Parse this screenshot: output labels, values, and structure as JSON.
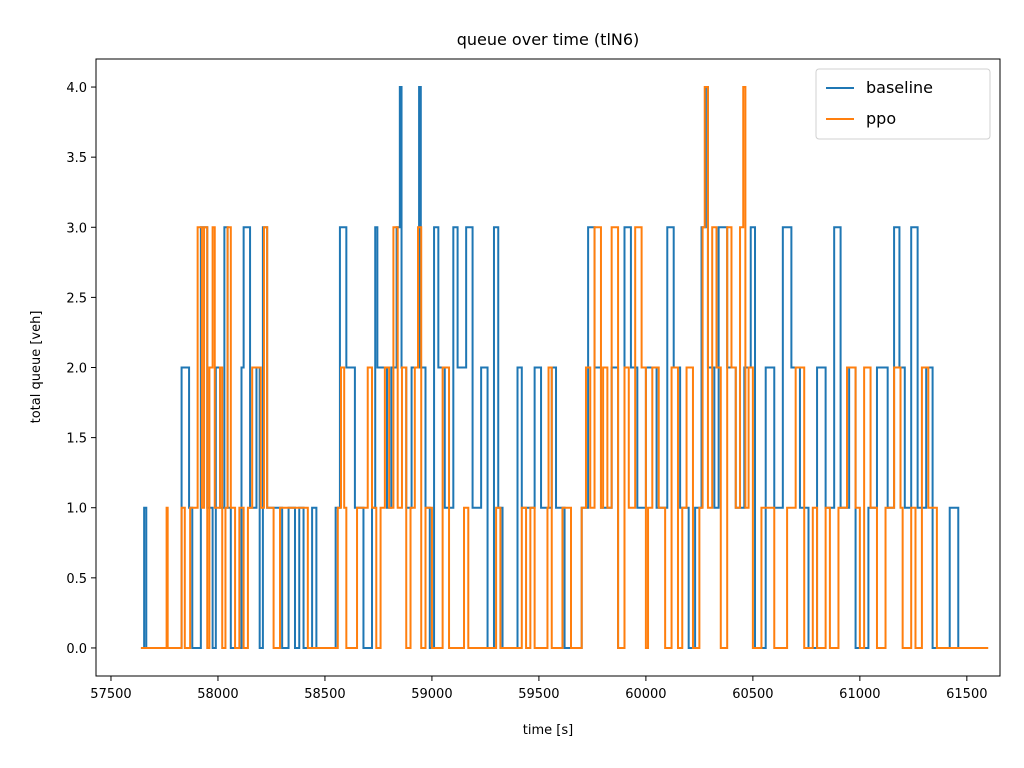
{
  "chart_data": {
    "type": "line",
    "drawstyle": "steps-post",
    "title": "queue over time (tlN6)",
    "xlabel": "time [s]",
    "ylabel": "total queue [veh]",
    "xlim": [
      57430,
      61655
    ],
    "ylim": [
      -0.2,
      4.2
    ],
    "xticks": [
      57500,
      58000,
      58500,
      59000,
      59500,
      60000,
      60500,
      61000,
      61500
    ],
    "yticks": [
      {
        "value": 0,
        "label": "0.0"
      },
      {
        "value": 0.5,
        "label": "0.5"
      },
      {
        "value": 1,
        "label": "1.0"
      },
      {
        "value": 1.5,
        "label": "1.5"
      },
      {
        "value": 2,
        "label": "2.0"
      },
      {
        "value": 2.5,
        "label": "2.5"
      },
      {
        "value": 3,
        "label": "3.0"
      },
      {
        "value": 3.5,
        "label": "3.5"
      },
      {
        "value": 4,
        "label": "4.0"
      }
    ],
    "legend": "upper right",
    "grid": false,
    "series": [
      {
        "name": "baseline",
        "color": "#1f77b4",
        "x": [
          57640,
          57655,
          57665,
          57830,
          57865,
          57880,
          57920,
          57950,
          57975,
          57990,
          58010,
          58030,
          58045,
          58060,
          58110,
          58120,
          58150,
          58180,
          58195,
          58210,
          58230,
          58300,
          58330,
          58360,
          58380,
          58400,
          58440,
          58460,
          58550,
          58570,
          58600,
          58640,
          58680,
          58720,
          58735,
          58745,
          58790,
          58810,
          58835,
          58850,
          58858,
          58880,
          58905,
          58940,
          58948,
          58970,
          58990,
          59010,
          59030,
          59060,
          59100,
          59120,
          59160,
          59190,
          59230,
          59260,
          59290,
          59310,
          59330,
          59400,
          59420,
          59480,
          59510,
          59560,
          59580,
          59620,
          59700,
          59730,
          59760,
          59790,
          59840,
          59870,
          59900,
          59930,
          59960,
          60000,
          60050,
          60100,
          60130,
          60160,
          60200,
          60230,
          60260,
          60280,
          60290,
          60320,
          60340,
          60380,
          60420,
          60460,
          60490,
          60510,
          60560,
          60600,
          60640,
          60680,
          60720,
          60760,
          60800,
          60840,
          60880,
          60910,
          60950,
          60980,
          61040,
          61080,
          61130,
          61160,
          61185,
          61210,
          61240,
          61270,
          61310,
          61340,
          61420,
          61460
        ],
        "values": [
          0,
          1,
          0,
          2,
          1,
          0,
          3,
          1,
          0,
          2,
          1,
          3,
          1,
          0,
          2,
          3,
          1,
          2,
          0,
          3,
          1,
          0,
          1,
          0,
          1,
          0,
          1,
          0,
          1,
          3,
          2,
          1,
          0,
          1,
          3,
          2,
          1,
          2,
          3,
          4,
          2,
          1,
          2,
          4,
          2,
          1,
          0,
          3,
          2,
          1,
          3,
          2,
          3,
          1,
          2,
          0,
          3,
          1,
          0,
          2,
          1,
          2,
          1,
          2,
          1,
          0,
          1,
          3,
          2,
          1,
          2,
          0,
          3,
          2,
          1,
          2,
          1,
          3,
          2,
          1,
          0,
          1,
          3,
          4,
          2,
          1,
          3,
          2,
          1,
          2,
          3,
          0,
          2,
          1,
          3,
          2,
          1,
          0,
          2,
          1,
          3,
          1,
          2,
          0,
          1,
          2,
          1,
          3,
          2,
          1,
          3,
          1,
          2,
          0,
          1,
          0
        ]
      },
      {
        "name": "ppo",
        "color": "#ff7f0e",
        "x": [
          57640,
          57760,
          57765,
          57830,
          57845,
          57870,
          57905,
          57925,
          57935,
          57950,
          57960,
          57975,
          57985,
          58010,
          58020,
          58035,
          58045,
          58060,
          58080,
          58100,
          58120,
          58140,
          58160,
          58200,
          58215,
          58230,
          58260,
          58290,
          58420,
          58560,
          58575,
          58590,
          58600,
          58650,
          58700,
          58720,
          58740,
          58760,
          58780,
          58800,
          58820,
          58840,
          58860,
          58880,
          58900,
          58920,
          58935,
          58950,
          58970,
          59000,
          59050,
          59080,
          59150,
          59170,
          59300,
          59320,
          59420,
          59440,
          59460,
          59480,
          59540,
          59545,
          59560,
          59610,
          59650,
          59700,
          59720,
          59740,
          59760,
          59790,
          59800,
          59820,
          59840,
          59870,
          59900,
          59920,
          59950,
          59980,
          60000,
          60010,
          60030,
          60060,
          60090,
          60120,
          60150,
          60170,
          60190,
          60220,
          60250,
          60265,
          60275,
          60290,
          60310,
          60330,
          60350,
          60380,
          60400,
          60420,
          60440,
          60455,
          60465,
          60480,
          60500,
          60540,
          60600,
          60660,
          60700,
          60740,
          60780,
          60800,
          60840,
          60860,
          60900,
          60940,
          60980,
          61000,
          61020,
          61050,
          61080,
          61120,
          61160,
          61190,
          61200,
          61240,
          61260,
          61290,
          61320,
          61360,
          61600
        ],
        "values": [
          0,
          1,
          0,
          1,
          0,
          1,
          3,
          1,
          3,
          0,
          2,
          3,
          1,
          2,
          0,
          1,
          3,
          1,
          0,
          1,
          0,
          1,
          2,
          1,
          3,
          1,
          0,
          1,
          0,
          1,
          2,
          1,
          0,
          1,
          2,
          1,
          0,
          1,
          2,
          1,
          3,
          1,
          2,
          0,
          1,
          2,
          3,
          0,
          1,
          0,
          2,
          0,
          1,
          0,
          1,
          0,
          1,
          0,
          1,
          0,
          1,
          2,
          0,
          1,
          0,
          1,
          2,
          1,
          3,
          1,
          2,
          1,
          3,
          0,
          2,
          1,
          3,
          2,
          0,
          1,
          2,
          1,
          0,
          2,
          0,
          1,
          2,
          0,
          1,
          3,
          4,
          1,
          3,
          2,
          0,
          3,
          2,
          1,
          3,
          4,
          1,
          2,
          0,
          1,
          0,
          1,
          2,
          0,
          1,
          0,
          1,
          0,
          1,
          2,
          1,
          0,
          2,
          1,
          0,
          1,
          2,
          1,
          0,
          1,
          0,
          2,
          1,
          0,
          0
        ]
      }
    ]
  }
}
